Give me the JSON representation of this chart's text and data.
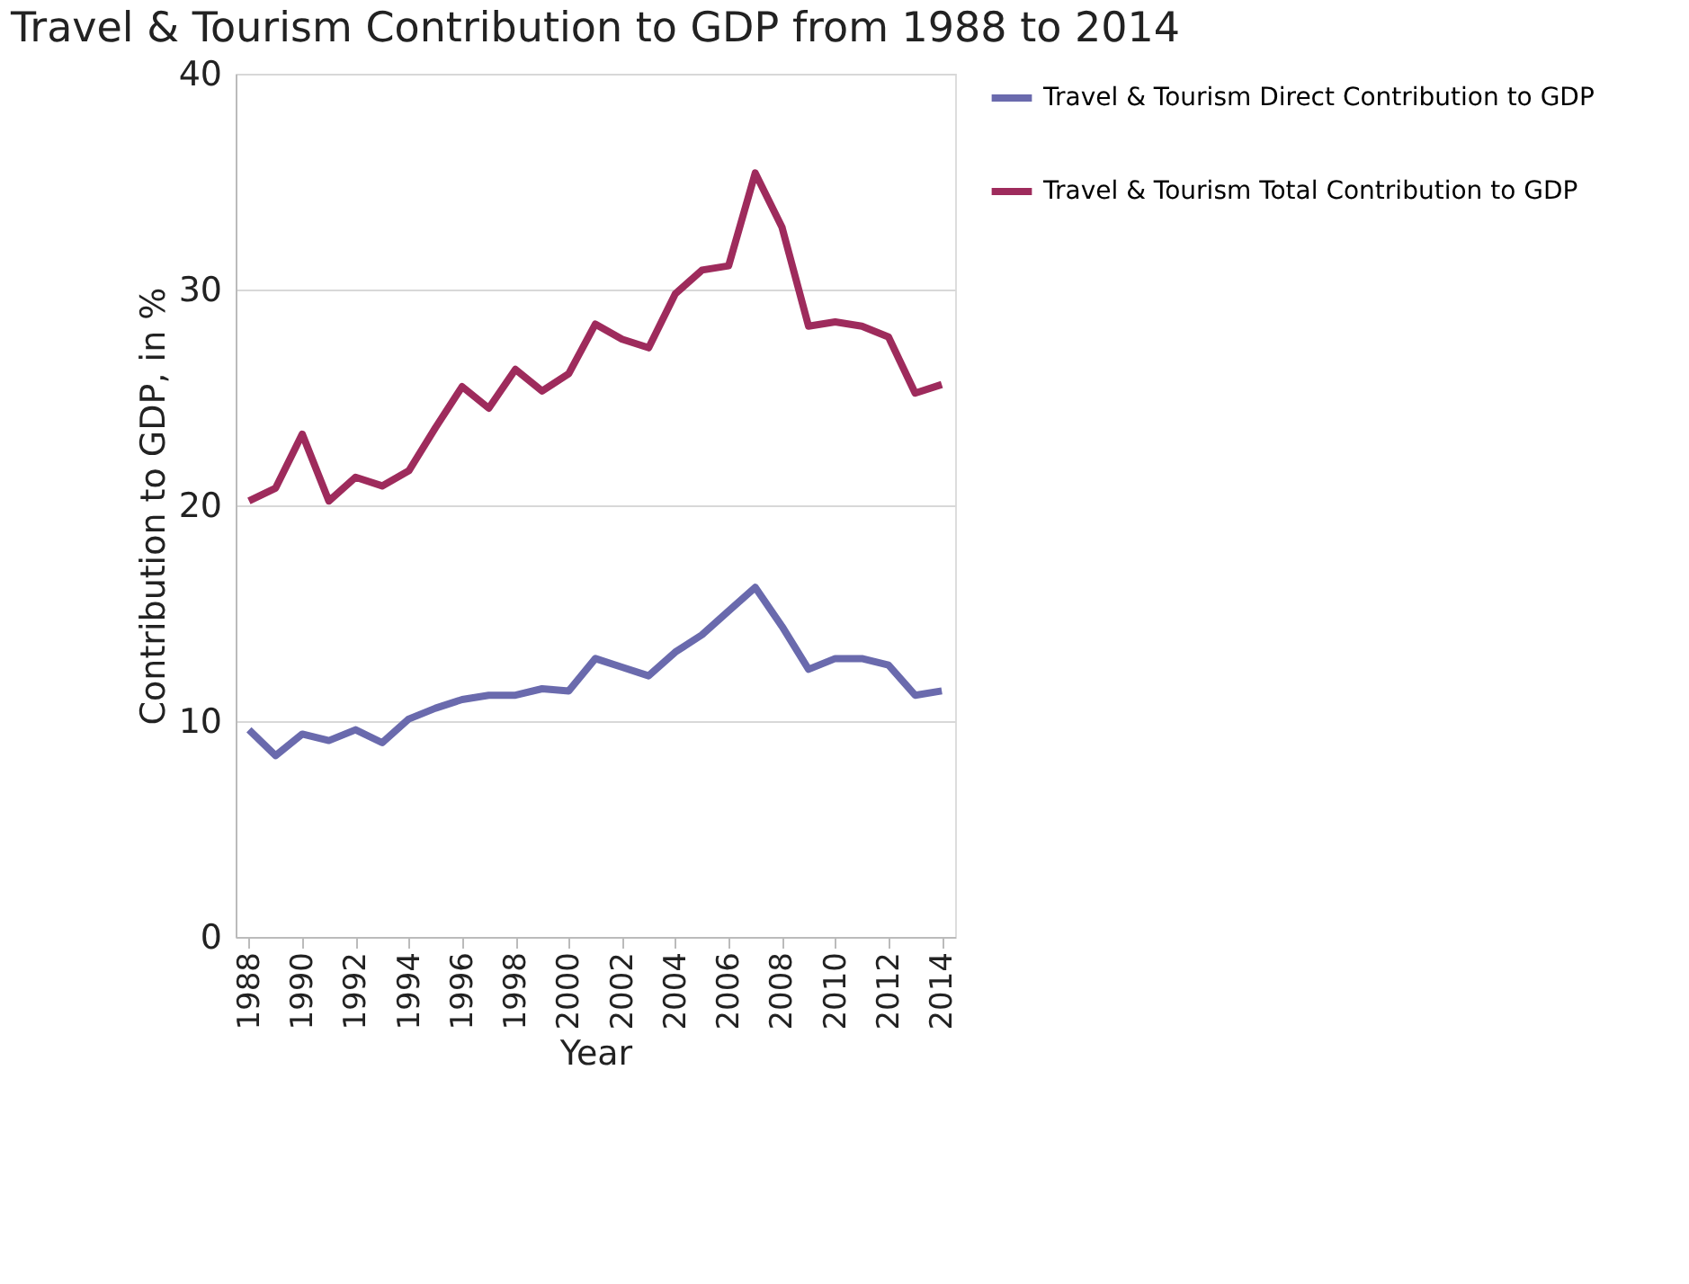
{
  "chart_data": {
    "type": "line",
    "title": "Travel & Tourism Contribution to GDP from 1988 to 2014",
    "xlabel": "Year",
    "ylabel": "Contribution to GDP, in %",
    "x": [
      1988,
      1989,
      1990,
      1991,
      1992,
      1993,
      1994,
      1995,
      1996,
      1997,
      1998,
      1999,
      2000,
      2001,
      2002,
      2003,
      2004,
      2005,
      2006,
      2007,
      2008,
      2009,
      2010,
      2011,
      2012,
      2013,
      2014
    ],
    "series": [
      {
        "name": "Travel & Tourism Direct Contribution to GDP",
        "color": "#6a6aad",
        "values": [
          9.6,
          8.4,
          9.4,
          9.1,
          9.6,
          9.0,
          10.1,
          10.6,
          11.0,
          11.2,
          11.2,
          11.5,
          11.4,
          12.9,
          12.5,
          12.1,
          13.2,
          14.0,
          15.1,
          16.2,
          14.4,
          12.4,
          12.9,
          12.9,
          12.6,
          11.2,
          11.4
        ]
      },
      {
        "name": "Travel & Tourism Total Contribution to GDP",
        "color": "#9e2b5c",
        "values": [
          20.2,
          20.8,
          23.3,
          20.2,
          21.3,
          20.9,
          21.6,
          23.6,
          25.5,
          24.5,
          26.3,
          25.3,
          26.1,
          28.4,
          27.7,
          27.3,
          29.8,
          30.9,
          31.1,
          35.4,
          32.9,
          28.3,
          28.5,
          28.3,
          27.8,
          25.2,
          25.6
        ]
      }
    ],
    "xlim": [
      1987.5,
      2014.5
    ],
    "xticks": [
      1988,
      1990,
      1992,
      1994,
      1996,
      1998,
      2000,
      2002,
      2004,
      2006,
      2008,
      2010,
      2012,
      2014
    ],
    "ylim": [
      0,
      40
    ],
    "yticks": [
      0,
      10,
      20,
      30,
      40
    ],
    "grid": "y",
    "legend": "right",
    "marker": "none",
    "line_style": "solid"
  }
}
